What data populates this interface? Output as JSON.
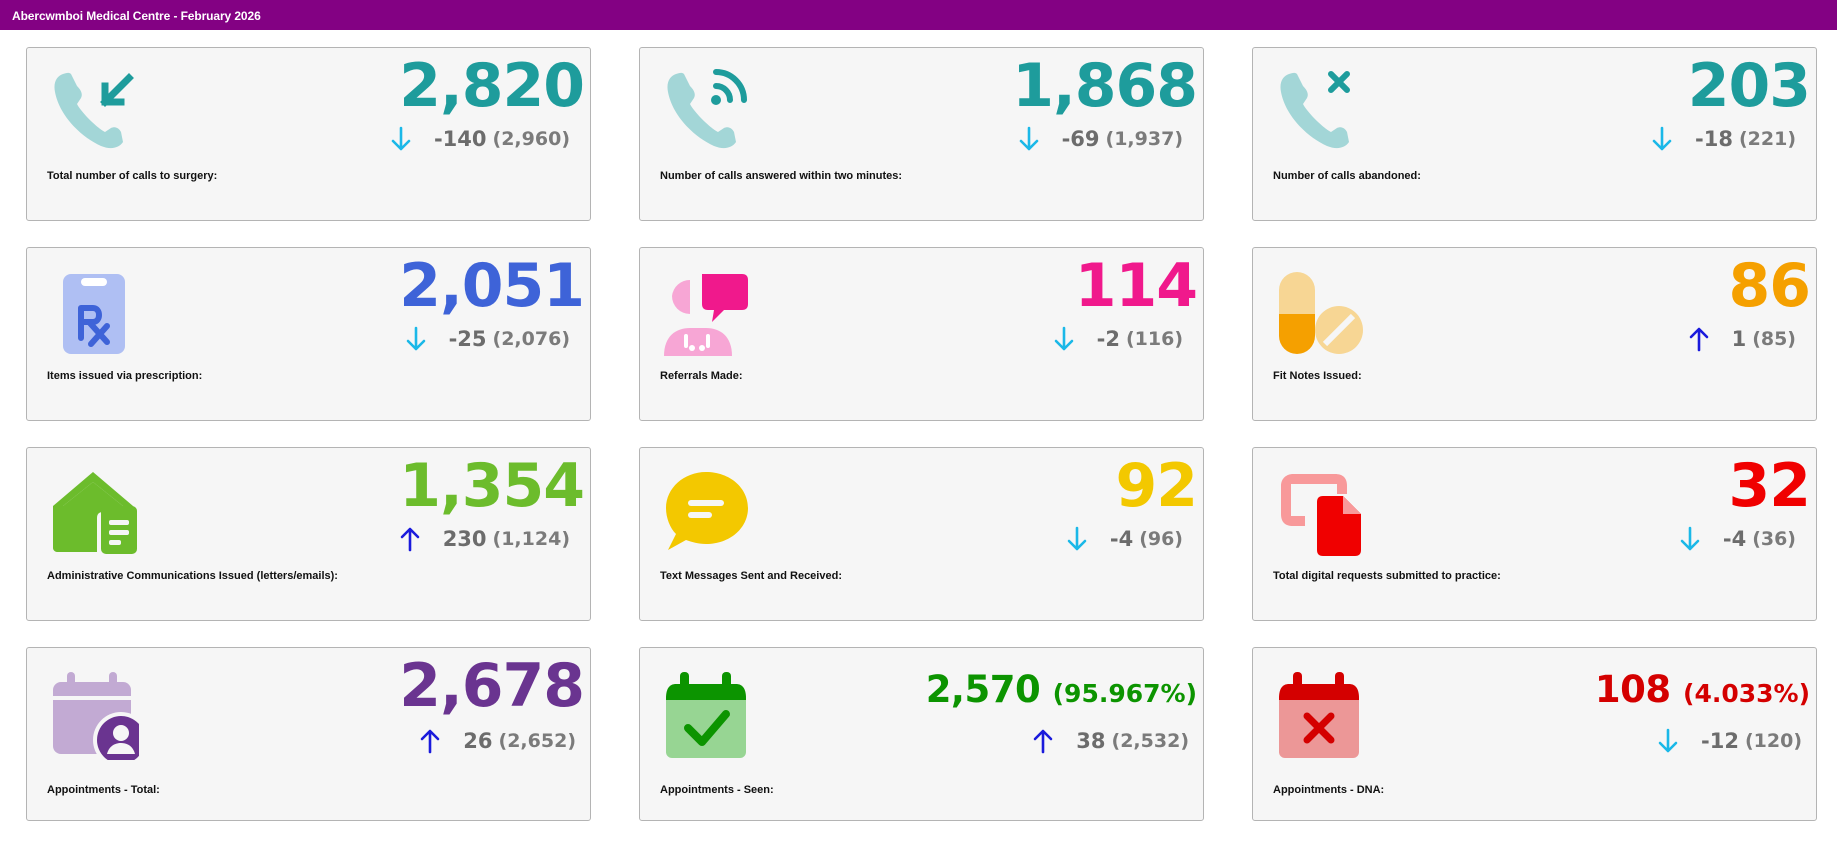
{
  "header": {
    "title": "Abercwmboi Medical Centre - February 2026"
  },
  "colors": {
    "header_bg": "#830183",
    "arrow_down": "#1ab8e8",
    "arrow_up": "#1a1adc"
  },
  "cards": [
    {
      "label": "Total number of calls to surgery:",
      "value": "2,820",
      "change": "-140",
      "previous": "(2,960)",
      "direction": "down",
      "icon": "incoming-call-icon",
      "value_color": "#1e9c9c"
    },
    {
      "label": "Number of calls answered within two minutes:",
      "value": "1,868",
      "change": "-69",
      "previous": "(1,937)",
      "direction": "down",
      "icon": "call-answered-icon",
      "value_color": "#1e9c9c"
    },
    {
      "label": "Number of calls abandoned:",
      "value": "203",
      "change": "-18",
      "previous": "(221)",
      "direction": "down",
      "icon": "call-abandoned-icon",
      "value_color": "#1e9c9c"
    },
    {
      "label": "Items issued via prescription:",
      "value": "2,051",
      "change": "-25",
      "previous": "(2,076)",
      "direction": "down",
      "icon": "prescription-icon",
      "value_color": "#3e63d8"
    },
    {
      "label": "Referrals Made:",
      "value": "114",
      "change": "-2",
      "previous": "(116)",
      "direction": "down",
      "icon": "referral-icon",
      "value_color": "#f0198c"
    },
    {
      "label": "Fit Notes Issued:",
      "value": "86",
      "change": "1",
      "previous": "(85)",
      "direction": "up",
      "icon": "pills-icon",
      "value_color": "#f5a000"
    },
    {
      "label": "Administrative Communications Issued (letters/emails):",
      "value": "1,354",
      "change": "230",
      "previous": "(1,124)",
      "direction": "up",
      "icon": "home-document-icon",
      "value_color": "#6cbc2c"
    },
    {
      "label": "Text Messages Sent and Received:",
      "value": "92",
      "change": "-4",
      "previous": "(96)",
      "direction": "down",
      "icon": "message-icon",
      "value_color": "#f3c800"
    },
    {
      "label": "Total digital requests submitted to practice:",
      "value": "32",
      "change": "-4",
      "previous": "(36)",
      "direction": "down",
      "icon": "digital-request-icon",
      "value_color": "#f00000"
    },
    {
      "label": "Appointments - Total:",
      "value": "2,678",
      "change": "26",
      "previous": "(2,652)",
      "direction": "up",
      "icon": "calendar-person-icon",
      "value_color": "#6a3490"
    },
    {
      "label": "Appointments - Seen:",
      "value": "2,570",
      "percent": "(95.967%)",
      "change": "38",
      "previous": "(2,532)",
      "direction": "up",
      "icon": "calendar-check-icon",
      "value_color": "#0c9400"
    },
    {
      "label": "Appointments - DNA:",
      "value": "108",
      "percent": "(4.033%)",
      "change": "-12",
      "previous": "(120)",
      "direction": "down",
      "icon": "calendar-cross-icon",
      "value_color": "#d40000"
    }
  ]
}
